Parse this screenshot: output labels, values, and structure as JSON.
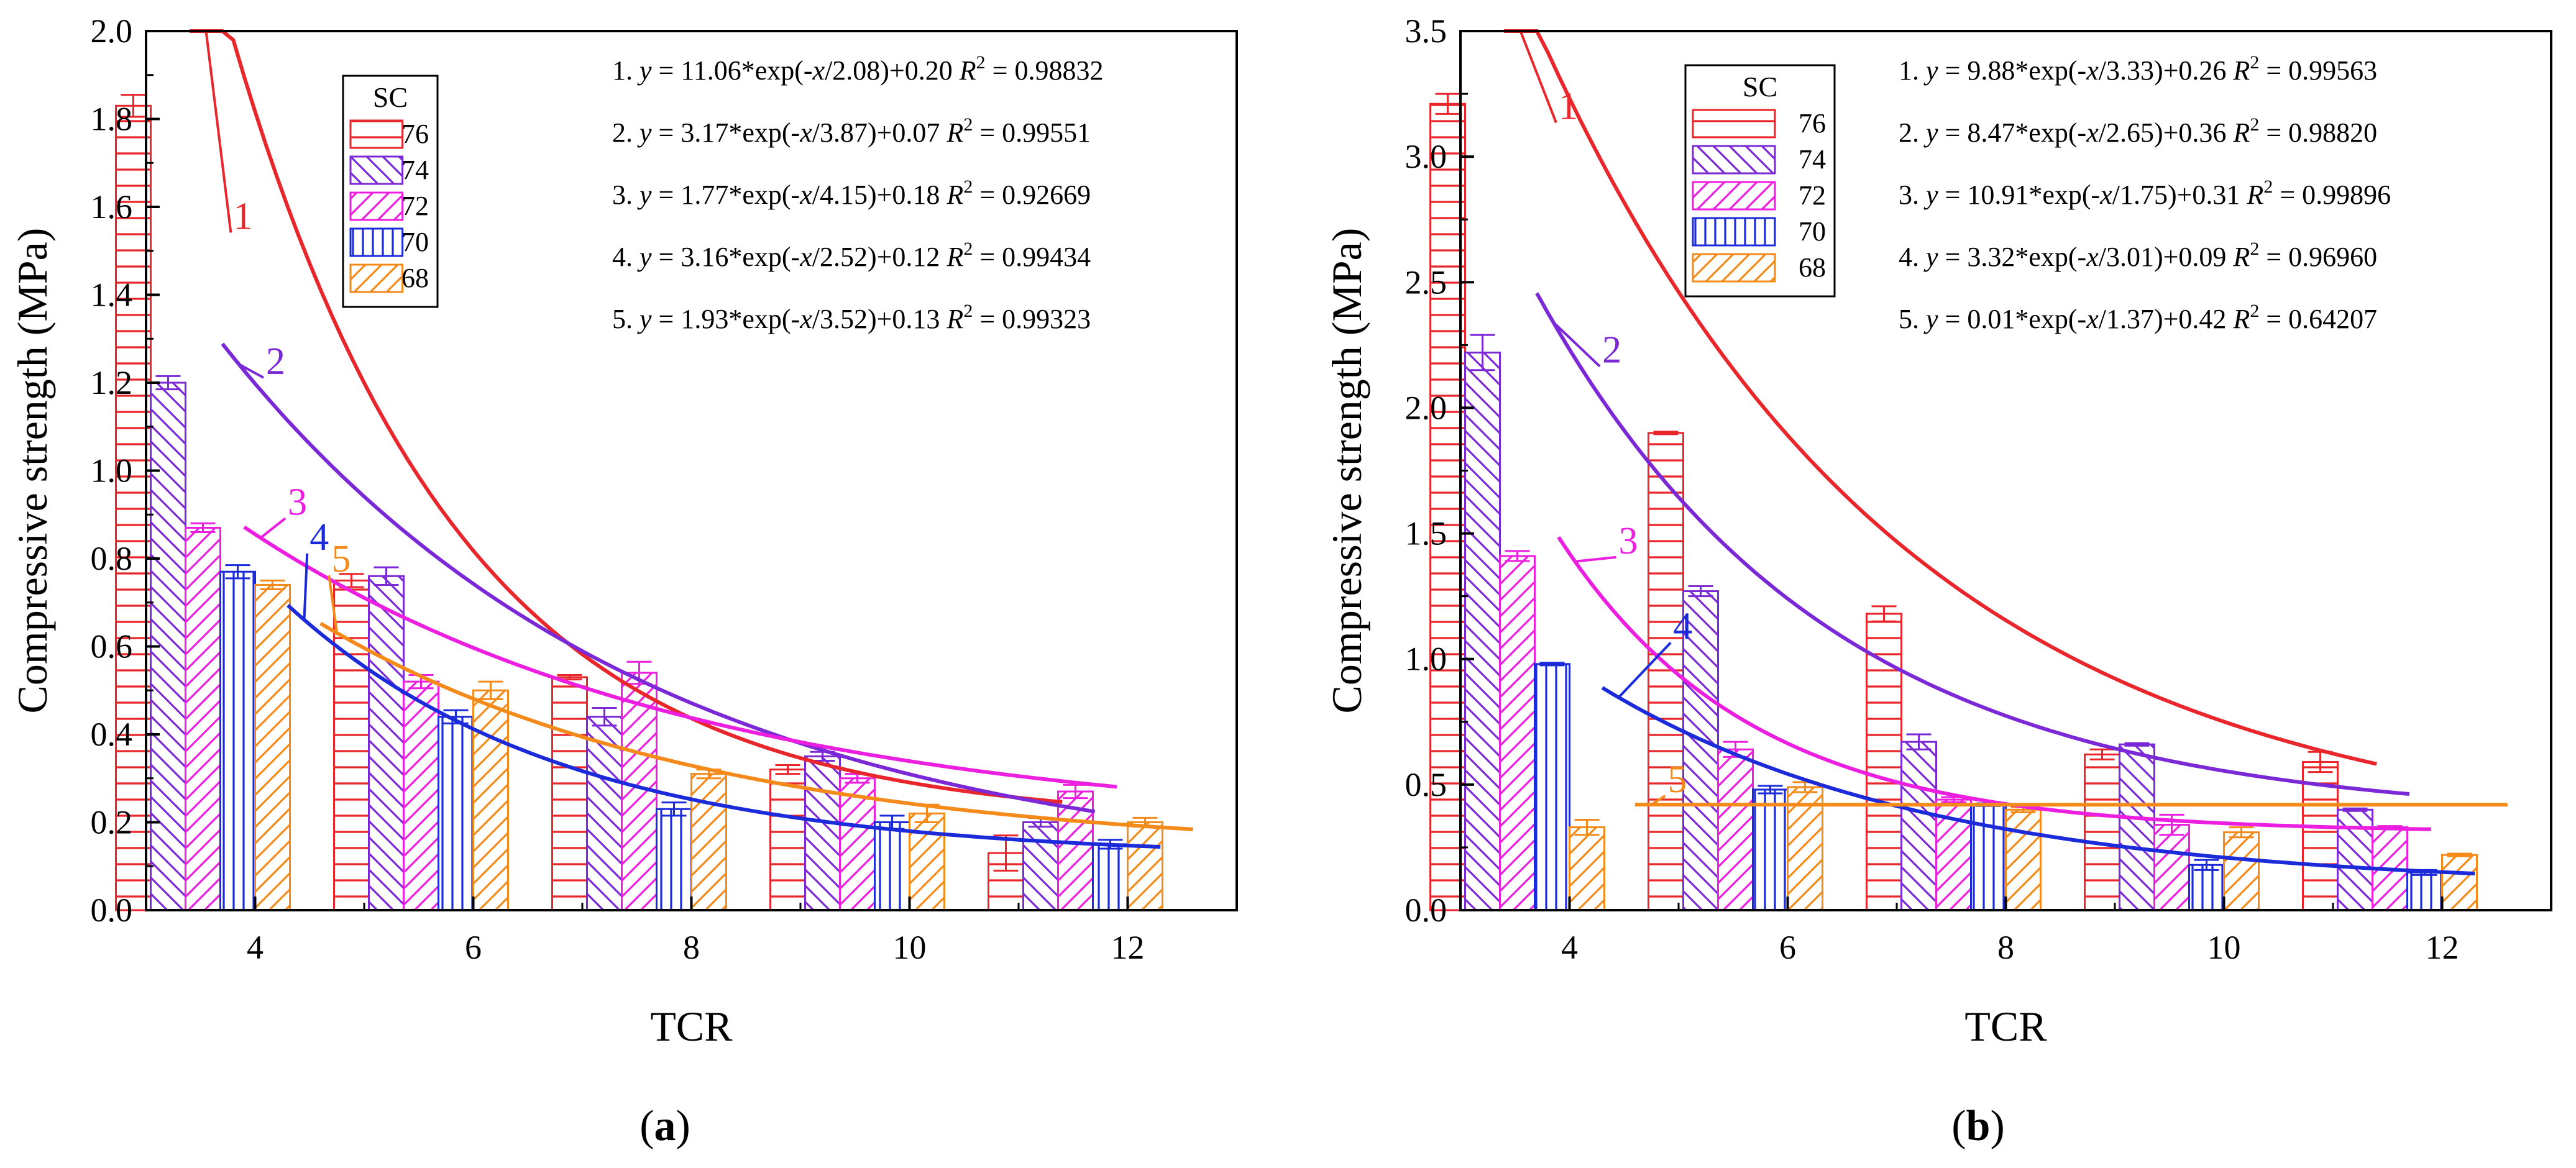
{
  "chart_data": [
    {
      "panel_id": "a",
      "panel_label": "a",
      "type": "bar",
      "xlabel": "TCR",
      "ylabel": "Compressive strength (MPa)",
      "categories": [
        4,
        6,
        8,
        10,
        12
      ],
      "ylim": [
        0,
        2.0
      ],
      "yticks": [
        0,
        0.2,
        0.4,
        0.6,
        0.8,
        1.0,
        1.2,
        1.4,
        1.6,
        1.8,
        2.0
      ],
      "ytick_labels": [
        "0.0",
        "0.2",
        "0.4",
        "0.6",
        "0.8",
        "1.0",
        "1.2",
        "1.4",
        "1.6",
        "1.8",
        "2.0"
      ],
      "legend_title": "SC",
      "series": [
        {
          "name": "76",
          "color": "#e8262b",
          "pattern": "hlines",
          "values": [
            1.83,
            0.75,
            0.53,
            0.32,
            0.13
          ],
          "errors": [
            0.025,
            0.015,
            0.005,
            0.01,
            0.04
          ]
        },
        {
          "name": "74",
          "color": "#7b29d6",
          "pattern": "backslash",
          "values": [
            1.2,
            0.76,
            0.44,
            0.35,
            0.2
          ],
          "errors": [
            0.015,
            0.02,
            0.02,
            0.01,
            0.01
          ]
        },
        {
          "name": "72",
          "color": "#ec1fe0",
          "pattern": "slash",
          "values": [
            0.87,
            0.52,
            0.54,
            0.3,
            0.27
          ],
          "errors": [
            0.01,
            0.015,
            0.025,
            0.01,
            0.015
          ]
        },
        {
          "name": "70",
          "color": "#1b2bd9",
          "pattern": "vlines",
          "values": [
            0.77,
            0.44,
            0.23,
            0.2,
            0.15
          ],
          "errors": [
            0.015,
            0.015,
            0.015,
            0.015,
            0.01
          ]
        },
        {
          "name": "68",
          "color": "#f48a1a",
          "pattern": "slash",
          "values": [
            0.74,
            0.5,
            0.31,
            0.22,
            0.2
          ],
          "errors": [
            0.01,
            0.02,
            0.01,
            0.02,
            0.01
          ]
        }
      ],
      "fits": [
        {
          "id": "1",
          "a": 11.06,
          "t": 2.08,
          "c": 0.2,
          "x_range": [
            3.4,
            11.4
          ],
          "label_x": 3.8,
          "label_y": 1.55,
          "color": "#e8262b"
        },
        {
          "id": "2",
          "a": 3.17,
          "t": 3.87,
          "c": 0.07,
          "x_range": [
            3.7,
            11.7
          ],
          "label_x": 4.1,
          "label_y": 1.22,
          "color": "#7b29d6"
        },
        {
          "id": "3",
          "a": 1.77,
          "t": 4.15,
          "c": 0.18,
          "x_range": [
            3.9,
            11.9
          ],
          "label_x": 4.3,
          "label_y": 0.9,
          "color": "#ec1fe0"
        },
        {
          "id": "4",
          "a": 3.16,
          "t": 2.52,
          "c": 0.12,
          "x_range": [
            4.3,
            12.3
          ],
          "label_x": 4.5,
          "label_y": 0.82,
          "color": "#1b2bd9"
        },
        {
          "id": "5",
          "a": 1.93,
          "t": 3.52,
          "c": 0.13,
          "x_range": [
            4.6,
            12.6
          ],
          "label_x": 4.7,
          "label_y": 0.77,
          "color": "#f48a1a"
        }
      ],
      "equations": [
        {
          "num": "1.",
          "y": "y",
          "body": " = 11.06*exp(-",
          "x": "x",
          "tail": "/2.08)+0.20",
          "r2_label": "R",
          "r2_value": " = 0.98832"
        },
        {
          "num": "2.",
          "y": "y",
          "body": " = 3.17*exp(-",
          "x": "x",
          "tail": "/3.87)+0.07",
          "r2_label": "R",
          "r2_value": " = 0.99551"
        },
        {
          "num": "3.",
          "y": "y",
          "body": " = 1.77*exp(-",
          "x": "x",
          "tail": "/4.15)+0.18",
          "r2_label": "R",
          "r2_value": " = 0.92669"
        },
        {
          "num": "4.",
          "y": "y",
          "body": " = 3.16*exp(-",
          "x": "x",
          "tail": "/2.52)+0.12",
          "r2_label": "R",
          "r2_value": " = 0.99434"
        },
        {
          "num": "5.",
          "y": "y",
          "body": " = 1.93*exp(-",
          "x": "x",
          "tail": "/3.52)+0.13",
          "r2_label": "R",
          "r2_value": " = 0.99323"
        }
      ]
    },
    {
      "panel_id": "b",
      "panel_label": "b",
      "type": "bar",
      "xlabel": "TCR",
      "ylabel": "Compressive strength (MPa)",
      "categories": [
        4,
        6,
        8,
        10,
        12
      ],
      "ylim": [
        0,
        3.5
      ],
      "yticks": [
        0,
        0.5,
        1.0,
        1.5,
        2.0,
        2.5,
        3.0,
        3.5
      ],
      "ytick_labels": [
        "0.0",
        "0.5",
        "1.0",
        "1.5",
        "2.0",
        "2.5",
        "3.0",
        "3.5"
      ],
      "legend_title": "SC",
      "series": [
        {
          "name": "76",
          "color": "#e8262b",
          "pattern": "hlines",
          "values": [
            3.21,
            1.9,
            1.18,
            0.62,
            0.59
          ],
          "errors": [
            0.04,
            0.005,
            0.03,
            0.02,
            0.04
          ]
        },
        {
          "name": "74",
          "color": "#7b29d6",
          "pattern": "backslash",
          "values": [
            2.22,
            1.27,
            0.67,
            0.66,
            0.4
          ],
          "errors": [
            0.07,
            0.02,
            0.03,
            0.005,
            0.005
          ]
        },
        {
          "name": "72",
          "color": "#ec1fe0",
          "pattern": "slash",
          "values": [
            1.41,
            0.64,
            0.44,
            0.34,
            0.33
          ],
          "errors": [
            0.02,
            0.03,
            0.01,
            0.04,
            0.005
          ]
        },
        {
          "name": "70",
          "color": "#1b2bd9",
          "pattern": "vlines",
          "values": [
            0.98,
            0.48,
            0.42,
            0.18,
            0.15
          ],
          "errors": [
            0.005,
            0.015,
            0.005,
            0.02,
            0.01
          ]
        },
        {
          "name": "68",
          "color": "#f48a1a",
          "pattern": "slash",
          "values": [
            0.33,
            0.49,
            0.4,
            0.31,
            0.22
          ],
          "errors": [
            0.03,
            0.02,
            0.01,
            0.02,
            0.005
          ]
        }
      ],
      "fits": [
        {
          "id": "1",
          "a": 9.88,
          "t": 3.33,
          "c": 0.26,
          "x_range": [
            3.4,
            11.4
          ],
          "label_x": 3.9,
          "label_y": 3.15,
          "color": "#e8262b"
        },
        {
          "id": "2",
          "a": 8.47,
          "t": 2.65,
          "c": 0.36,
          "x_range": [
            3.7,
            11.7
          ],
          "label_x": 4.3,
          "label_y": 2.18,
          "color": "#7b29d6"
        },
        {
          "id": "3",
          "a": 10.91,
          "t": 1.75,
          "c": 0.31,
          "x_range": [
            3.9,
            11.9
          ],
          "label_x": 4.45,
          "label_y": 1.42,
          "color": "#ec1fe0"
        },
        {
          "id": "4",
          "a": 3.32,
          "t": 3.01,
          "c": 0.09,
          "x_range": [
            4.3,
            12.3
          ],
          "label_x": 4.95,
          "label_y": 1.08,
          "color": "#1b2bd9"
        },
        {
          "id": "5",
          "a": 0.01,
          "t": 1.37,
          "c": 0.42,
          "x_range": [
            4.6,
            12.6
          ],
          "label_x": 4.9,
          "label_y": 0.47,
          "color": "#f48a1a"
        }
      ],
      "equations": [
        {
          "num": "1.",
          "y": "y",
          "body": " = 9.88*exp(-",
          "x": "x",
          "tail": "/3.33)+0.26",
          "r2_label": "R",
          "r2_value": " = 0.99563"
        },
        {
          "num": "2.",
          "y": "y",
          "body": " = 8.47*exp(-",
          "x": "x",
          "tail": "/2.65)+0.36",
          "r2_label": "R",
          "r2_value": " = 0.98820"
        },
        {
          "num": "3.",
          "y": "y",
          "body": " = 10.91*exp(-",
          "x": "x",
          "tail": "/1.75)+0.31",
          "r2_label": "R",
          "r2_value": " = 0.99896"
        },
        {
          "num": "4.",
          "y": "y",
          "body": " = 3.32*exp(-",
          "x": "x",
          "tail": "/3.01)+0.09",
          "r2_label": "R",
          "r2_value": " = 0.96960"
        },
        {
          "num": "5.",
          "y": "y",
          "body": " = 0.01*exp(-",
          "x": "x",
          "tail": "/1.37)+0.42",
          "r2_label": "R",
          "r2_value": " = 0.64207"
        }
      ]
    }
  ]
}
